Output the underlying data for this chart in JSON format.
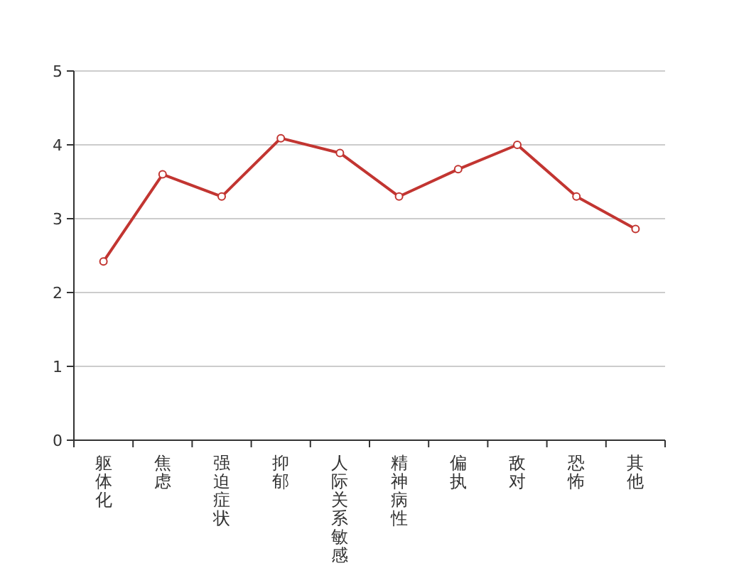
{
  "chart_data": {
    "type": "line",
    "categories": [
      "躯体化",
      "焦虑",
      "强迫症状",
      "抑郁",
      "人际关系敏感",
      "精神病性",
      "偏执",
      "敌对",
      "恐怖",
      "其他"
    ],
    "series": [
      {
        "color": "#c23531",
        "values": [
          2.42,
          3.6,
          3.3,
          4.09,
          3.89,
          3.3,
          3.67,
          4.0,
          3.3,
          2.86
        ]
      }
    ],
    "ylim": [
      0,
      5
    ],
    "yticks": [
      0,
      1,
      2,
      3,
      4,
      5
    ],
    "grid": "y",
    "marker": "circle"
  }
}
